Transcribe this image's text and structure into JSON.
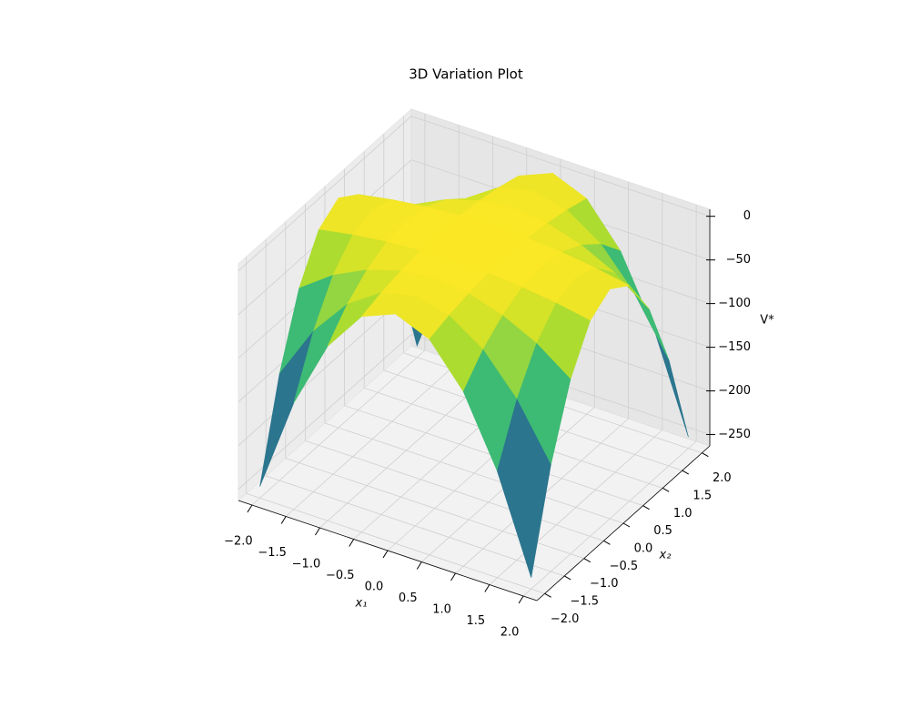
{
  "chart_data": {
    "type": "surface",
    "title": "3D Variation Plot",
    "xlabel": "x₁",
    "ylabel": "x₂",
    "zlabel": "V*",
    "cmap": "viridis",
    "x": [
      -2,
      -1.5,
      -1,
      -0.5,
      0,
      0.5,
      1,
      1.5,
      2
    ],
    "y": [
      -2,
      -1.5,
      -1,
      -0.5,
      0,
      0.5,
      1,
      1.5,
      2
    ],
    "z": [
      [
        -250,
        -141,
        -63,
        -16,
        0,
        -16,
        -63,
        -141,
        -250
      ],
      [
        -141,
        -79,
        -35,
        -9,
        0,
        -9,
        -35,
        -79,
        -141
      ],
      [
        -63,
        -35,
        -16,
        -4,
        0,
        -4,
        -16,
        -35,
        -63
      ],
      [
        -16,
        -9,
        -4,
        -1,
        0,
        -1,
        -4,
        -9,
        -16
      ],
      [
        0,
        0,
        0,
        0,
        0,
        0,
        0,
        0,
        0
      ],
      [
        -16,
        -9,
        -4,
        -1,
        0,
        -1,
        -4,
        -9,
        -16
      ],
      [
        -63,
        -35,
        -16,
        -4,
        0,
        -4,
        -16,
        -35,
        -63
      ],
      [
        -141,
        -79,
        -35,
        -9,
        0,
        -9,
        -35,
        -79,
        -141
      ],
      [
        -250,
        -141,
        -63,
        -16,
        0,
        -16,
        -63,
        -141,
        -250
      ]
    ],
    "xlim": [
      -2.2,
      2.2
    ],
    "ylim": [
      -2.2,
      2.2
    ],
    "zlim": [
      -263,
      8
    ],
    "xticks": [
      {
        "value": -2,
        "label": "−2.0"
      },
      {
        "value": -1.5,
        "label": "−1.5"
      },
      {
        "value": -1,
        "label": "−1.0"
      },
      {
        "value": -0.5,
        "label": "−0.5"
      },
      {
        "value": 0,
        "label": "0.0"
      },
      0.5,
      {
        "value": 1,
        "label": "1.0"
      },
      1.5,
      {
        "value": 2,
        "label": "2.0"
      }
    ],
    "yticks": [
      {
        "value": -2,
        "label": "−2.0"
      },
      {
        "value": -1.5,
        "label": "−1.5"
      },
      {
        "value": -1,
        "label": "−1.0"
      },
      {
        "value": -0.5,
        "label": "−0.5"
      },
      {
        "value": 0,
        "label": "0.0"
      },
      0.5,
      {
        "value": 1,
        "label": "1.0"
      },
      1.5,
      {
        "value": 2,
        "label": "2.0"
      }
    ],
    "zticks": [
      0,
      {
        "value": -50,
        "label": "−50"
      },
      {
        "value": -100,
        "label": "−100"
      },
      {
        "value": -150,
        "label": "−150"
      },
      {
        "value": -200,
        "label": "−200"
      },
      {
        "value": -250,
        "label": "−250"
      }
    ],
    "grid": true
  }
}
